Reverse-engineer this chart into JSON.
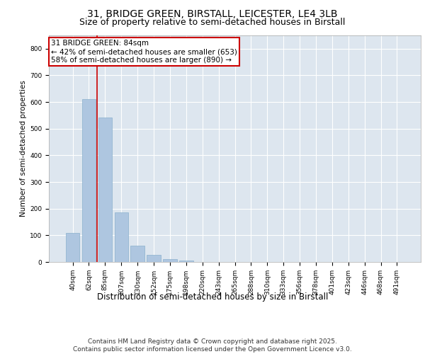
{
  "title_line1": "31, BRIDGE GREEN, BIRSTALL, LEICESTER, LE4 3LB",
  "title_line2": "Size of property relative to semi-detached houses in Birstall",
  "xlabel": "Distribution of semi-detached houses by size in Birstall",
  "ylabel": "Number of semi-detached properties",
  "categories": [
    "40sqm",
    "62sqm",
    "85sqm",
    "107sqm",
    "130sqm",
    "152sqm",
    "175sqm",
    "198sqm",
    "220sqm",
    "243sqm",
    "265sqm",
    "288sqm",
    "310sqm",
    "333sqm",
    "356sqm",
    "378sqm",
    "401sqm",
    "423sqm",
    "446sqm",
    "468sqm",
    "491sqm"
  ],
  "values": [
    108,
    610,
    543,
    185,
    60,
    27,
    10,
    5,
    0,
    0,
    0,
    0,
    0,
    0,
    0,
    0,
    0,
    0,
    0,
    0,
    0
  ],
  "bar_color": "#aec6e0",
  "bar_edge_color": "#8ab0cc",
  "background_color": "#dde6ef",
  "grid_color": "#ffffff",
  "vline_color": "#cc0000",
  "property_sqm": 84,
  "bin_edges": [
    40,
    62,
    85,
    107,
    130,
    152,
    175,
    198,
    220,
    243,
    265,
    288,
    310,
    333,
    356,
    378,
    401,
    423,
    446,
    468,
    491,
    514
  ],
  "annotation_title": "31 BRIDGE GREEN: 84sqm",
  "annotation_line2": "← 42% of semi-detached houses are smaller (653)",
  "annotation_line3": "58% of semi-detached houses are larger (890) →",
  "annotation_box_color": "#cc0000",
  "annotation_bg": "#ffffff",
  "ylim": [
    0,
    850
  ],
  "yticks": [
    0,
    100,
    200,
    300,
    400,
    500,
    600,
    700,
    800
  ],
  "footer_line1": "Contains HM Land Registry data © Crown copyright and database right 2025.",
  "footer_line2": "Contains public sector information licensed under the Open Government Licence v3.0.",
  "title_fontsize": 10,
  "subtitle_fontsize": 9,
  "footer_fontsize": 6.5,
  "annot_fontsize": 7.5,
  "tick_fontsize": 6.5,
  "ylabel_fontsize": 7.5,
  "xlabel_fontsize": 8.5
}
